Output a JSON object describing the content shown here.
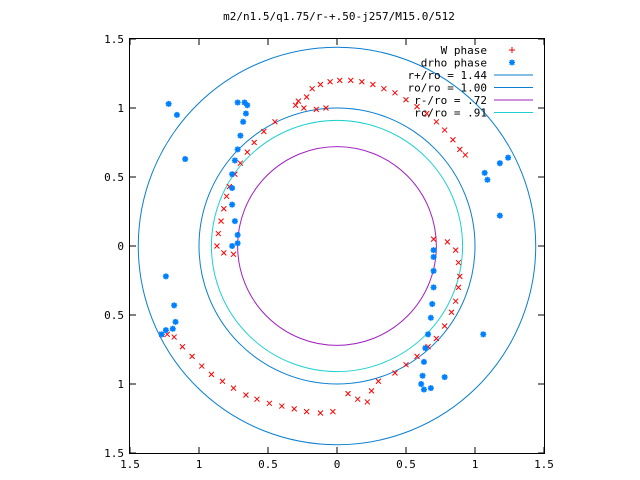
{
  "chart_data": {
    "type": "scatter",
    "title": "m2/n1.5/q1.75/r-+.50-j257/M15.0/512",
    "xlim": [
      -1.5,
      1.5
    ],
    "ylim": [
      -1.5,
      1.5
    ],
    "xticks": [
      -1.5,
      -1,
      -0.5,
      0,
      0.5,
      1,
      1.5
    ],
    "yticks": [
      -1.5,
      -1,
      -0.5,
      0,
      0.5,
      1,
      1.5
    ],
    "xtick_labels": [
      "1.5",
      "1",
      "0.5",
      "0",
      "0.5",
      "1",
      "1.5"
    ],
    "ytick_labels": [
      "1.5",
      "1",
      "0.5",
      "0",
      "0.5",
      "1",
      "1.5"
    ],
    "grid": false,
    "legend_position": "top-right",
    "series": [
      {
        "name": "W phase",
        "marker": "plus-cross",
        "color": "#ff0000",
        "points": [
          [
            -0.22,
            1.08
          ],
          [
            -0.18,
            1.14
          ],
          [
            -0.12,
            1.17
          ],
          [
            -0.05,
            1.19
          ],
          [
            0.02,
            1.2
          ],
          [
            0.1,
            1.2
          ],
          [
            0.18,
            1.19
          ],
          [
            0.26,
            1.17
          ],
          [
            0.34,
            1.14
          ],
          [
            0.42,
            1.11
          ],
          [
            0.5,
            1.06
          ],
          [
            0.58,
            1.01
          ],
          [
            0.65,
            0.96
          ],
          [
            0.72,
            0.9
          ],
          [
            0.78,
            0.84
          ],
          [
            0.84,
            0.77
          ],
          [
            0.89,
            0.7
          ],
          [
            0.93,
            0.66
          ],
          [
            -0.28,
            1.05
          ],
          [
            -0.3,
            1.02
          ],
          [
            -0.24,
            1.0
          ],
          [
            -0.15,
            0.99
          ],
          [
            -0.08,
            1.0
          ],
          [
            -0.45,
            0.9
          ],
          [
            -0.53,
            0.83
          ],
          [
            -0.6,
            0.75
          ],
          [
            -0.65,
            0.68
          ],
          [
            -0.7,
            0.6
          ],
          [
            -0.74,
            0.52
          ],
          [
            -0.78,
            0.43
          ],
          [
            -0.8,
            0.36
          ],
          [
            -0.82,
            0.27
          ],
          [
            -0.84,
            0.18
          ],
          [
            -0.86,
            0.09
          ],
          [
            -0.87,
            0.0
          ],
          [
            -0.82,
            -0.05
          ],
          [
            -0.75,
            -0.06
          ],
          [
            0.7,
            0.05
          ],
          [
            0.8,
            0.03
          ],
          [
            0.86,
            -0.03
          ],
          [
            0.88,
            -0.12
          ],
          [
            0.89,
            -0.22
          ],
          [
            0.88,
            -0.3
          ],
          [
            0.86,
            -0.4
          ],
          [
            0.83,
            -0.48
          ],
          [
            0.78,
            -0.58
          ],
          [
            0.72,
            -0.67
          ],
          [
            0.66,
            -0.73
          ],
          [
            0.58,
            -0.8
          ],
          [
            0.5,
            -0.86
          ],
          [
            0.42,
            -0.92
          ],
          [
            0.3,
            -0.98
          ],
          [
            0.25,
            -1.05
          ],
          [
            0.22,
            -1.13
          ],
          [
            0.15,
            -1.11
          ],
          [
            0.08,
            -1.07
          ],
          [
            -0.03,
            -1.2
          ],
          [
            -0.12,
            -1.21
          ],
          [
            -0.22,
            -1.2
          ],
          [
            -0.31,
            -1.18
          ],
          [
            -0.4,
            -1.16
          ],
          [
            -0.49,
            -1.14
          ],
          [
            -0.58,
            -1.11
          ],
          [
            -0.66,
            -1.08
          ],
          [
            -0.75,
            -1.03
          ],
          [
            -0.83,
            -0.98
          ],
          [
            -0.91,
            -0.93
          ],
          [
            -0.98,
            -0.87
          ],
          [
            -1.05,
            -0.8
          ],
          [
            -1.12,
            -0.73
          ],
          [
            -1.18,
            -0.66
          ],
          [
            -1.23,
            -0.64
          ],
          [
            -1.27,
            -0.64
          ]
        ]
      },
      {
        "name": "drho phase",
        "marker": "asterisk",
        "color": "#0080ff",
        "points": [
          [
            -1.22,
            1.03
          ],
          [
            -1.16,
            0.95
          ],
          [
            -1.1,
            0.63
          ],
          [
            -0.72,
            1.04
          ],
          [
            -0.67,
            1.04
          ],
          [
            -0.65,
            1.02
          ],
          [
            -0.66,
            0.96
          ],
          [
            -0.68,
            0.9
          ],
          [
            -0.7,
            0.8
          ],
          [
            -0.72,
            0.7
          ],
          [
            -0.74,
            0.62
          ],
          [
            -0.76,
            0.52
          ],
          [
            -0.76,
            0.42
          ],
          [
            -0.76,
            0.3
          ],
          [
            -0.74,
            0.18
          ],
          [
            -0.72,
            0.08
          ],
          [
            -0.72,
            0.02
          ],
          [
            -0.76,
            0.0
          ],
          [
            1.07,
            0.53
          ],
          [
            1.09,
            0.48
          ],
          [
            1.18,
            0.6
          ],
          [
            1.24,
            0.64
          ],
          [
            1.18,
            0.22
          ],
          [
            1.06,
            -0.64
          ],
          [
            0.78,
            -0.95
          ],
          [
            0.68,
            -1.03
          ],
          [
            0.63,
            -1.04
          ],
          [
            0.61,
            -1.0
          ],
          [
            0.62,
            -0.94
          ],
          [
            0.63,
            -0.84
          ],
          [
            0.64,
            -0.74
          ],
          [
            0.66,
            -0.64
          ],
          [
            0.68,
            -0.52
          ],
          [
            0.69,
            -0.42
          ],
          [
            0.7,
            -0.3
          ],
          [
            0.7,
            -0.18
          ],
          [
            0.7,
            -0.08
          ],
          [
            0.7,
            -0.03
          ],
          [
            -1.27,
            -0.64
          ],
          [
            -1.24,
            -0.61
          ],
          [
            -1.19,
            -0.6
          ],
          [
            -1.17,
            -0.55
          ],
          [
            -1.18,
            -0.43
          ],
          [
            -1.24,
            -0.22
          ]
        ]
      }
    ],
    "circles": [
      {
        "name": "r+/ro = 1.44",
        "radius": 1.44,
        "color": "#0a7ecf"
      },
      {
        "name": "ro/ro = 1.00",
        "radius": 1.0,
        "color": "#0a7ecf"
      },
      {
        "name": "r-/ro =  .72",
        "radius": 0.72,
        "color": "#a020c0"
      },
      {
        "name": "rc/ro =  .91",
        "radius": 0.91,
        "color": "#20d0d0"
      }
    ]
  }
}
